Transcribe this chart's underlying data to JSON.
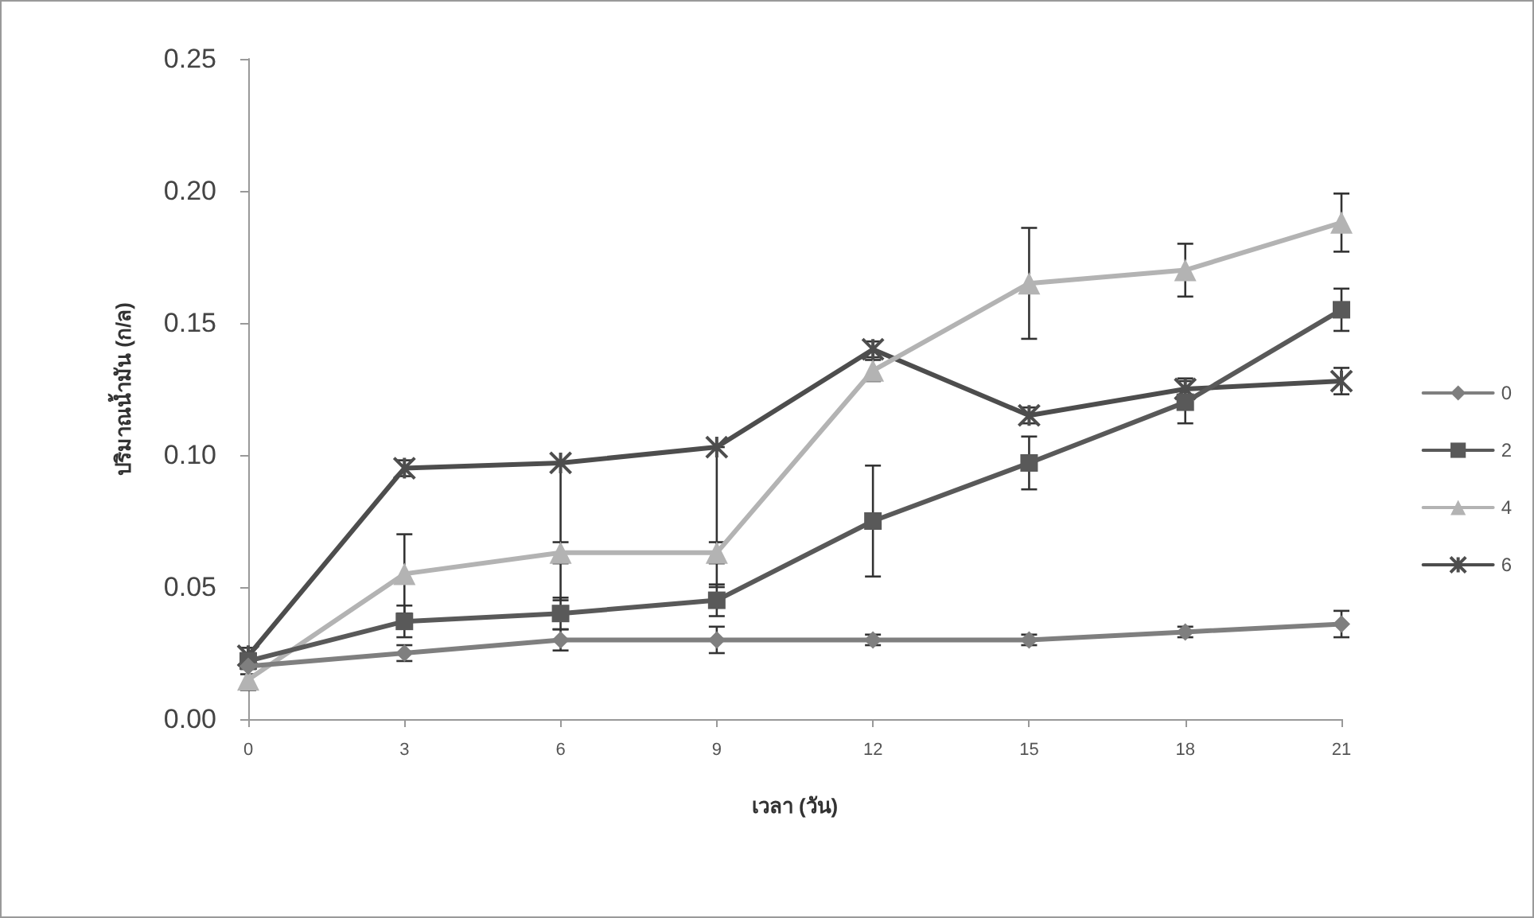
{
  "chart_data": {
    "type": "line",
    "xlabel": "เวลา (วัน)",
    "ylabel": "ปริมาณน้ำมัน (ก/ล)",
    "categories": [
      "0",
      "3",
      "6",
      "9",
      "12",
      "15",
      "18",
      "21"
    ],
    "ylim": [
      0,
      0.25
    ],
    "yticks": [
      {
        "value": 0,
        "label": "0.00"
      },
      {
        "value": 0.05,
        "label": "0.05"
      },
      {
        "value": 0.1,
        "label": "0.10"
      },
      {
        "value": 0.15,
        "label": "0.15"
      },
      {
        "value": 0.2,
        "label": "0.20"
      },
      {
        "value": 0.25,
        "label": "0.25"
      }
    ],
    "grid": false,
    "legend": "right",
    "series": [
      {
        "name": "0",
        "color": "#7f7f7f",
        "marker": "diamond",
        "values": [
          0.02,
          0.025,
          0.03,
          0.03,
          0.03,
          0.03,
          0.033,
          0.036
        ],
        "errors": [
          0.003,
          0.003,
          0.004,
          0.005,
          0.002,
          0.002,
          0.002,
          0.005
        ]
      },
      {
        "name": "2",
        "color": "#595959",
        "marker": "square",
        "values": [
          0.022,
          0.037,
          0.04,
          0.045,
          0.075,
          0.097,
          0.12,
          0.155
        ],
        "errors": [
          0.003,
          0.006,
          0.006,
          0.006,
          0.021,
          0.01,
          0.008,
          0.008
        ]
      },
      {
        "name": "4",
        "color": "#b3b3b3",
        "marker": "triangle",
        "values": [
          0.015,
          0.055,
          0.063,
          0.063,
          0.132,
          0.165,
          0.17,
          0.188
        ],
        "errors": [
          0.004,
          0.015,
          0.004,
          0.004,
          0.004,
          0.021,
          0.01,
          0.011
        ]
      },
      {
        "name": "6",
        "color": "#4d4d4d",
        "marker": "cross",
        "values": [
          0.024,
          0.095,
          0.097,
          0.103,
          0.14,
          0.115,
          0.125,
          0.128
        ],
        "errors": [
          0.003,
          0.003,
          [
            0.045,
            0.097
          ],
          [
            0.05,
            0.103
          ],
          0.003,
          0.003,
          0.004,
          0.005
        ]
      }
    ]
  }
}
